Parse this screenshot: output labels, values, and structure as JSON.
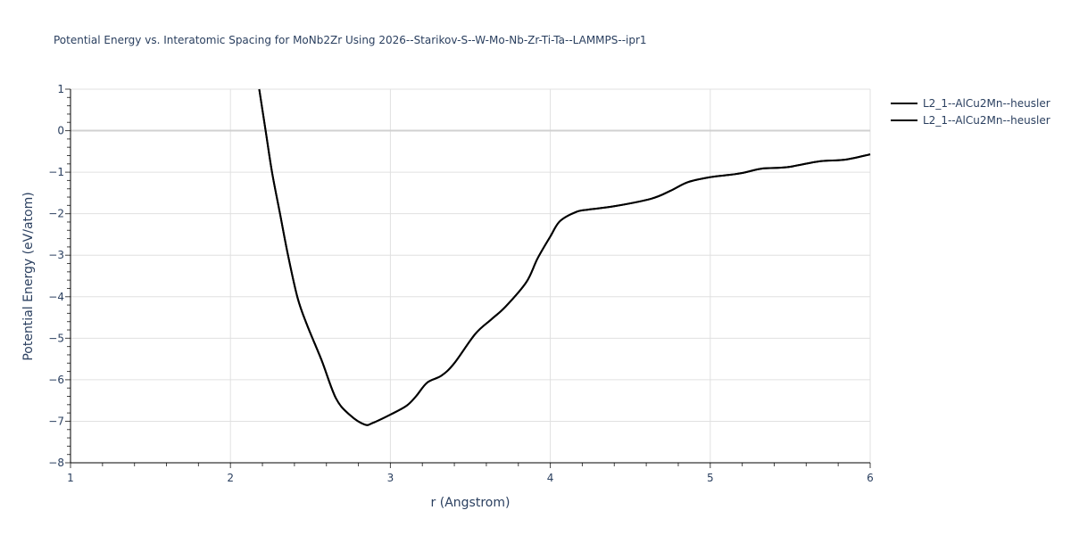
{
  "chart_data": {
    "type": "line",
    "title": "Potential Energy vs. Interatomic Spacing for MoNb2Zr Using 2026--Starikov-S--W-Mo-Nb-Zr-Ti-Ta--LAMMPS--ipr1",
    "xlabel": "r (Angstrom)",
    "ylabel": "Potential Energy (eV/atom)",
    "xlim": [
      1,
      6
    ],
    "ylim": [
      -8,
      1
    ],
    "x_ticks": [
      "1",
      "2",
      "3",
      "4",
      "5",
      "6"
    ],
    "y_ticks": [
      "1",
      "0",
      "−1",
      "−2",
      "−3",
      "−4",
      "−5",
      "−6",
      "−7",
      "−8"
    ],
    "grid": true,
    "legend_position": "top-right-outside",
    "series": [
      {
        "name": "L2_1--AlCu2Mn--heusler",
        "color": "#000000",
        "x": [
          2.18,
          2.22,
          2.26,
          2.31,
          2.36,
          2.42,
          2.48,
          2.57,
          2.66,
          2.75,
          2.84,
          2.89,
          3.0,
          3.1,
          3.16,
          3.23,
          3.32,
          3.4,
          3.53,
          3.63,
          3.72,
          3.85,
          3.92,
          4.0,
          4.06,
          4.16,
          4.24,
          4.4,
          4.63,
          4.75,
          4.86,
          5.0,
          5.13,
          5.2,
          5.33,
          5.48,
          5.68,
          5.84,
          6.0
        ],
        "y": [
          1.0,
          0.0,
          -1.0,
          -2.0,
          -3.0,
          -4.03,
          -4.69,
          -5.53,
          -6.45,
          -6.86,
          -7.08,
          -7.04,
          -6.84,
          -6.63,
          -6.4,
          -6.07,
          -5.9,
          -5.6,
          -4.9,
          -4.55,
          -4.24,
          -3.65,
          -3.08,
          -2.55,
          -2.18,
          -1.96,
          -1.9,
          -1.82,
          -1.64,
          -1.45,
          -1.24,
          -1.12,
          -1.06,
          -1.02,
          -0.91,
          -0.88,
          -0.74,
          -0.7,
          -0.57
        ]
      },
      {
        "name": "L2_1--AlCu2Mn--heusler",
        "color": "#000000",
        "x": [
          2.18,
          2.22,
          2.26,
          2.31,
          2.36,
          2.42,
          2.48,
          2.57,
          2.66,
          2.75,
          2.84,
          2.89,
          3.0,
          3.1,
          3.16,
          3.23,
          3.32,
          3.4,
          3.53,
          3.63,
          3.72,
          3.85,
          3.92,
          4.0,
          4.06,
          4.16,
          4.24,
          4.4,
          4.63,
          4.75,
          4.86,
          5.0,
          5.13,
          5.2,
          5.33,
          5.48,
          5.68,
          5.84,
          6.0
        ],
        "y": [
          1.0,
          0.0,
          -1.0,
          -2.0,
          -3.0,
          -4.03,
          -4.69,
          -5.53,
          -6.45,
          -6.86,
          -7.08,
          -7.04,
          -6.84,
          -6.63,
          -6.4,
          -6.07,
          -5.9,
          -5.6,
          -4.9,
          -4.55,
          -4.24,
          -3.65,
          -3.08,
          -2.55,
          -2.18,
          -1.96,
          -1.9,
          -1.82,
          -1.64,
          -1.45,
          -1.24,
          -1.12,
          -1.06,
          -1.02,
          -0.91,
          -0.88,
          -0.74,
          -0.7,
          -0.57
        ]
      }
    ]
  },
  "legend": {
    "items": [
      {
        "label": "L2_1--AlCu2Mn--heusler"
      },
      {
        "label": "L2_1--AlCu2Mn--heusler"
      }
    ]
  }
}
